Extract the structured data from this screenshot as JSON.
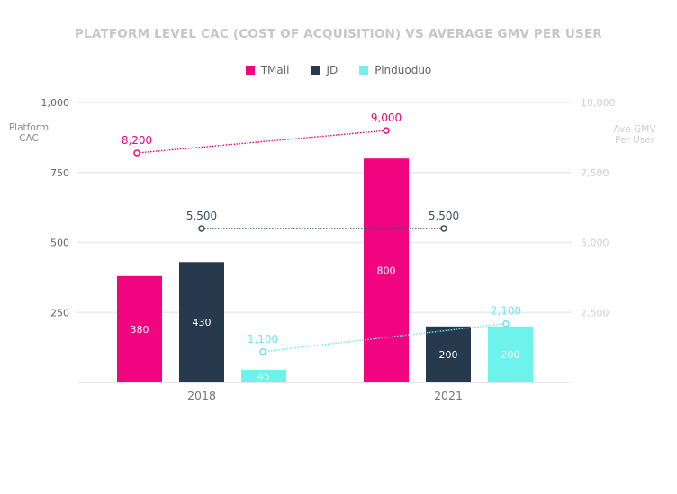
{
  "chart_data": {
    "type": "bar",
    "title": "PLATFORM LEVEL CAC (COST OF ACQUISITION) VS AVERAGE GMV PER USER",
    "categories": [
      "2018",
      "2021"
    ],
    "ylabel": "Platform\nCAC",
    "ylabel_lines": [
      "Platform",
      "CAC"
    ],
    "y2label": "Ave GMV\nPer User",
    "y2label_lines": [
      "Ave GMV",
      "Per User"
    ],
    "ylim": [
      0,
      1000
    ],
    "y2lim": [
      0,
      10000
    ],
    "yticks": [
      250,
      500,
      750,
      1000
    ],
    "ytick_labels": [
      "250",
      "500",
      "750",
      "1,000"
    ],
    "y2ticks": [
      2500,
      5000,
      7500,
      10000
    ],
    "y2tick_labels": [
      "2,500",
      "5,000",
      "7,500",
      "10,000"
    ],
    "grid": true,
    "legend_position": "top-center",
    "series": [
      {
        "name": "TMall",
        "color": "#F0047F",
        "values": [
          380,
          800
        ],
        "labels": [
          "380",
          "800"
        ],
        "gmv": [
          8200,
          9000
        ],
        "gmv_labels": [
          "8,200",
          "9,000"
        ]
      },
      {
        "name": "JD",
        "color": "#273A4D",
        "values": [
          430,
          200
        ],
        "labels": [
          "430",
          "200"
        ],
        "gmv": [
          5500,
          5500
        ],
        "gmv_labels": [
          "5,500",
          "5,500"
        ]
      },
      {
        "name": "Pinduoduo",
        "color": "#6DF2EC",
        "values": [
          45,
          200
        ],
        "labels": [
          "45",
          "200"
        ],
        "gmv": [
          1100,
          2100
        ],
        "gmv_labels": [
          "1,100",
          "2,100"
        ]
      }
    ],
    "line_label_colors": [
      "#F0047F",
      "#3D4F63",
      "#6DE5F0"
    ]
  },
  "legend": [
    {
      "label": "TMall",
      "color": "#F0047F"
    },
    {
      "label": "JD",
      "color": "#273A4D"
    },
    {
      "label": "Pinduoduo",
      "color": "#6DF2EC"
    }
  ]
}
